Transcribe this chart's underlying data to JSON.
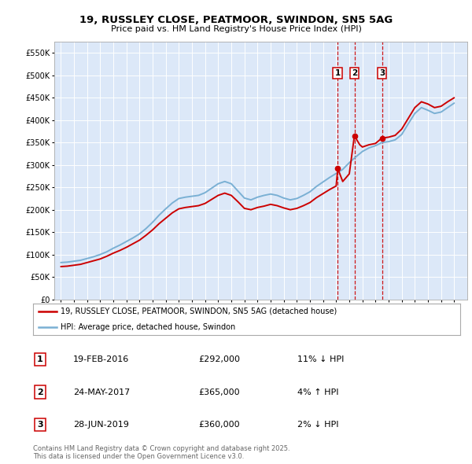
{
  "title": "19, RUSSLEY CLOSE, PEATMOOR, SWINDON, SN5 5AG",
  "subtitle": "Price paid vs. HM Land Registry's House Price Index (HPI)",
  "background_color": "#ffffff",
  "plot_bg_color": "#dce8f8",
  "legend_label_red": "19, RUSSLEY CLOSE, PEATMOOR, SWINDON, SN5 5AG (detached house)",
  "legend_label_blue": "HPI: Average price, detached house, Swindon",
  "footer": "Contains HM Land Registry data © Crown copyright and database right 2025.\nThis data is licensed under the Open Government Licence v3.0.",
  "ylim": [
    0,
    575000
  ],
  "yticks": [
    0,
    50000,
    100000,
    150000,
    200000,
    250000,
    300000,
    350000,
    400000,
    450000,
    500000,
    550000
  ],
  "xlim": [
    1994.5,
    2026.0
  ],
  "red_color": "#cc0000",
  "blue_color": "#7ab0d4",
  "dashed_color": "#cc0000",
  "trans_dates": [
    2016.12,
    2017.39,
    2019.49
  ],
  "trans_values": [
    292000,
    365000,
    360000
  ],
  "trans_labels": [
    "1",
    "2",
    "3"
  ],
  "hpi_years": [
    1995,
    1995.5,
    1996,
    1996.5,
    1997,
    1997.5,
    1998,
    1998.5,
    1999,
    1999.5,
    2000,
    2000.5,
    2001,
    2001.5,
    2002,
    2002.5,
    2003,
    2003.5,
    2004,
    2004.5,
    2005,
    2005.5,
    2006,
    2006.5,
    2007,
    2007.5,
    2008,
    2008.5,
    2009,
    2009.5,
    2010,
    2010.5,
    2011,
    2011.5,
    2012,
    2012.5,
    2013,
    2013.5,
    2014,
    2014.5,
    2015,
    2015.5,
    2016,
    2016.5,
    2017,
    2017.5,
    2018,
    2018.5,
    2019,
    2019.5,
    2020,
    2020.5,
    2021,
    2021.5,
    2022,
    2022.5,
    2023,
    2023.5,
    2024,
    2024.5,
    2025
  ],
  "hpi_values": [
    82000,
    83000,
    85000,
    87000,
    91000,
    95000,
    100000,
    106000,
    114000,
    121000,
    129000,
    137000,
    146000,
    158000,
    172000,
    188000,
    202000,
    215000,
    225000,
    228000,
    230000,
    232000,
    238000,
    248000,
    258000,
    263000,
    258000,
    242000,
    226000,
    222000,
    228000,
    232000,
    235000,
    232000,
    226000,
    222000,
    225000,
    232000,
    240000,
    252000,
    262000,
    272000,
    281000,
    290000,
    305000,
    318000,
    330000,
    338000,
    343000,
    350000,
    352000,
    356000,
    368000,
    392000,
    415000,
    428000,
    422000,
    415000,
    418000,
    428000,
    438000
  ],
  "red_years": [
    1995,
    1995.5,
    1996,
    1996.5,
    1997,
    1997.5,
    1998,
    1998.5,
    1999,
    1999.5,
    2000,
    2000.5,
    2001,
    2001.5,
    2002,
    2002.5,
    2003,
    2003.5,
    2004,
    2004.5,
    2005,
    2005.5,
    2006,
    2006.5,
    2007,
    2007.5,
    2008,
    2008.5,
    2009,
    2009.5,
    2010,
    2010.5,
    2011,
    2011.5,
    2012,
    2012.5,
    2013,
    2013.5,
    2014,
    2014.5,
    2015,
    2015.5,
    2016,
    2016.12,
    2016.5,
    2017.0,
    2017.39,
    2017.8,
    2018,
    2018.5,
    2019.0,
    2019.49,
    2020,
    2020.5,
    2021,
    2021.5,
    2022,
    2022.5,
    2023,
    2023.5,
    2024,
    2024.5,
    2025
  ],
  "red_values": [
    73000,
    74000,
    76000,
    78000,
    82000,
    86000,
    90000,
    96000,
    103000,
    109000,
    116000,
    124000,
    132000,
    143000,
    155000,
    169000,
    181000,
    193000,
    202000,
    205000,
    207000,
    209000,
    214000,
    223000,
    232000,
    237000,
    232000,
    218000,
    203000,
    200000,
    205000,
    208000,
    212000,
    209000,
    204000,
    200000,
    203000,
    209000,
    216000,
    227000,
    236000,
    245000,
    253000,
    292000,
    263000,
    280000,
    365000,
    345000,
    340000,
    345000,
    348000,
    360000,
    362000,
    366000,
    380000,
    404000,
    428000,
    441000,
    436000,
    428000,
    431000,
    441000,
    450000
  ]
}
